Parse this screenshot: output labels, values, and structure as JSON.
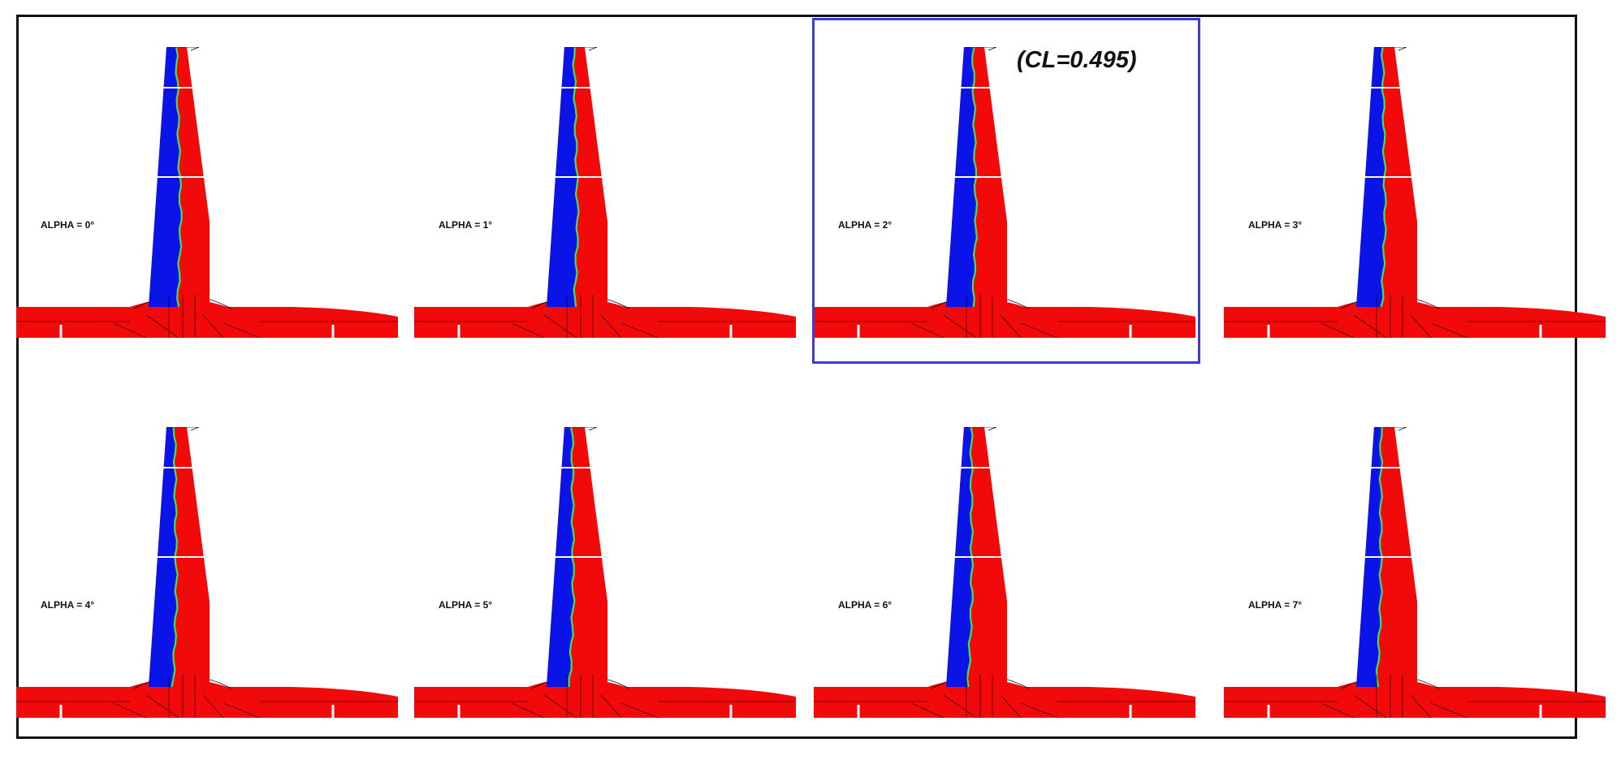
{
  "figure": {
    "panels": [
      {
        "label": "ALPHA = 0°",
        "alpha_deg": 0,
        "highlighted": false
      },
      {
        "label": "ALPHA = 1°",
        "alpha_deg": 1,
        "highlighted": false
      },
      {
        "label": "ALPHA = 2°",
        "alpha_deg": 2,
        "highlighted": true
      },
      {
        "label": "ALPHA = 3°",
        "alpha_deg": 3,
        "highlighted": false
      },
      {
        "label": "ALPHA = 4°",
        "alpha_deg": 4,
        "highlighted": false
      },
      {
        "label": "ALPHA = 5°",
        "alpha_deg": 5,
        "highlighted": false
      },
      {
        "label": "ALPHA = 6°",
        "alpha_deg": 6,
        "highlighted": false
      },
      {
        "label": "ALPHA = 7°",
        "alpha_deg": 7,
        "highlighted": false
      }
    ],
    "highlight_annotation": "(CL=0.495)",
    "colors": {
      "laminar": "#0a14e6",
      "turbulent": "#f20a0a",
      "transition": "#3fe05a",
      "highlight_border": "#3b3bd6",
      "frame_border": "#111111"
    }
  }
}
